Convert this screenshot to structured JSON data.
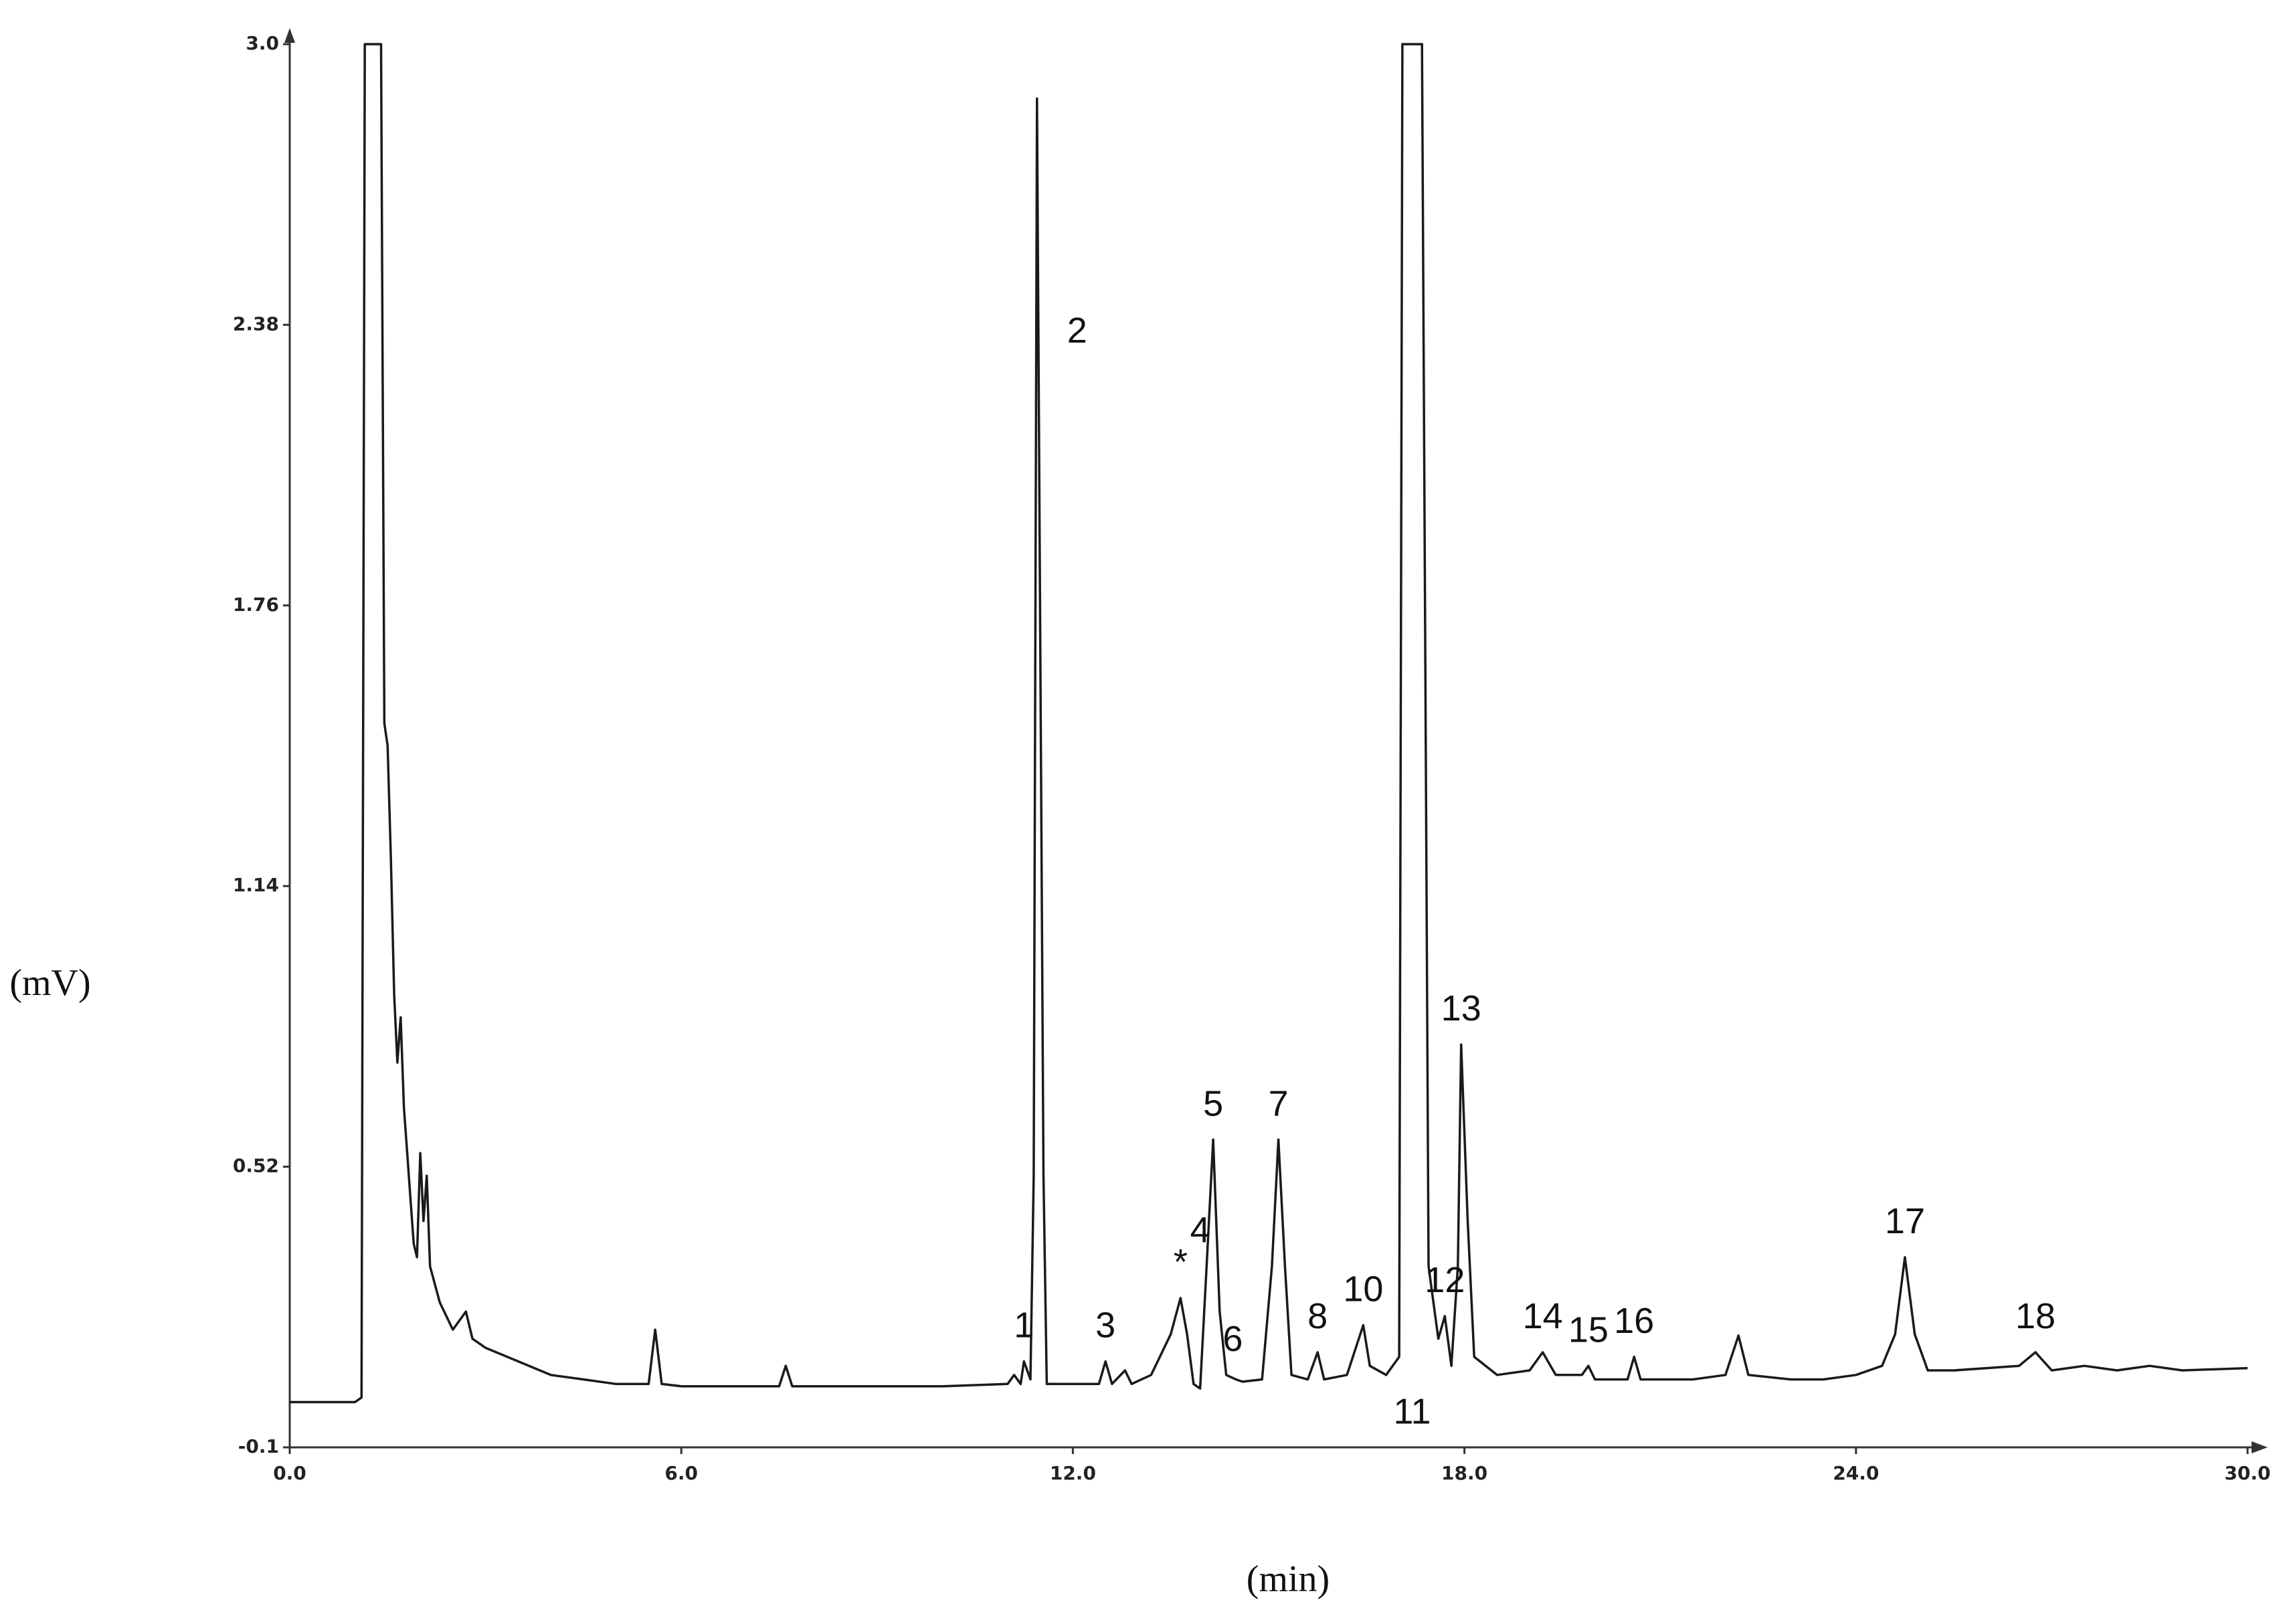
{
  "chart_data": {
    "type": "line",
    "xlabel": "(min)",
    "ylabel": "(mV)",
    "color": "#1a1a1a",
    "xlim": [
      0,
      30
    ],
    "xticks": [
      {
        "value": 0,
        "label": "0.0"
      },
      {
        "value": 6,
        "label": "6.0"
      },
      {
        "value": 12,
        "label": "12.0"
      },
      {
        "value": 18,
        "label": "18.0"
      },
      {
        "value": 24,
        "label": "24.0"
      },
      {
        "value": 30,
        "label": "30.0"
      }
    ],
    "ylim": [
      -0.1,
      3.0
    ],
    "yticks": [
      -0.1,
      0.52,
      1.14,
      1.76,
      2.38,
      {
        "value": 3.0,
        "label": "3.0"
      }
    ],
    "x": [
      0,
      1.0,
      1.1,
      1.15,
      1.4,
      1.45,
      1.5,
      1.55,
      1.6,
      1.65,
      1.7,
      1.75,
      1.8,
      1.85,
      1.9,
      1.95,
      2.0,
      2.05,
      2.1,
      2.15,
      2.3,
      2.5,
      2.7,
      2.8,
      3.0,
      3.5,
      4.0,
      4.5,
      5.0,
      5.5,
      5.6,
      5.7,
      6.0,
      7.0,
      7.5,
      7.6,
      7.7,
      9.0,
      10.0,
      11.0,
      11.1,
      11.2,
      11.25,
      11.35,
      11.4,
      11.45,
      11.55,
      11.6,
      12.0,
      12.4,
      12.5,
      12.6,
      12.8,
      12.9,
      13.2,
      13.5,
      13.65,
      13.75,
      13.85,
      13.95,
      14.05,
      14.15,
      14.25,
      14.35,
      14.5,
      14.6,
      14.9,
      15.05,
      15.15,
      15.25,
      15.35,
      15.6,
      15.75,
      15.85,
      16.2,
      16.45,
      16.55,
      16.8,
      17.0,
      17.05,
      17.35,
      17.45,
      17.6,
      17.7,
      17.8,
      17.9,
      17.95,
      18.05,
      18.15,
      18.5,
      19.0,
      19.2,
      19.4,
      19.8,
      19.9,
      20.0,
      20.5,
      20.6,
      20.7,
      21.5,
      22.0,
      22.2,
      22.35,
      23.0,
      23.5,
      24.0,
      24.4,
      24.6,
      24.75,
      24.9,
      25.1,
      25.5,
      26.5,
      26.75,
      27.0,
      27.5,
      28.0,
      28.5,
      29.0,
      30.0
    ],
    "values": [
      0,
      0,
      0.01,
      3.0,
      3.0,
      1.5,
      1.45,
      1.2,
      0.9,
      0.75,
      0.85,
      0.65,
      0.55,
      0.45,
      0.35,
      0.32,
      0.55,
      0.4,
      0.5,
      0.3,
      0.22,
      0.16,
      0.2,
      0.14,
      0.12,
      0.09,
      0.06,
      0.05,
      0.04,
      0.04,
      0.16,
      0.04,
      0.035,
      0.035,
      0.035,
      0.08,
      0.035,
      0.035,
      0.035,
      0.04,
      0.06,
      0.04,
      0.09,
      0.05,
      0.5,
      2.88,
      0.5,
      0.04,
      0.04,
      0.04,
      0.09,
      0.04,
      0.07,
      0.04,
      0.06,
      0.15,
      0.23,
      0.15,
      0.04,
      0.03,
      0.3,
      0.58,
      0.2,
      0.06,
      0.05,
      0.045,
      0.05,
      0.3,
      0.58,
      0.3,
      0.06,
      0.05,
      0.11,
      0.05,
      0.06,
      0.17,
      0.08,
      0.06,
      0.1,
      3.0,
      3.0,
      0.3,
      0.14,
      0.19,
      0.08,
      0.3,
      0.79,
      0.4,
      0.1,
      0.06,
      0.07,
      0.11,
      0.06,
      0.06,
      0.08,
      0.05,
      0.05,
      0.1,
      0.05,
      0.05,
      0.06,
      0.147,
      0.06,
      0.05,
      0.05,
      0.06,
      0.08,
      0.15,
      0.32,
      0.15,
      0.07,
      0.07,
      0.08,
      0.11,
      0.07,
      0.08,
      0.07,
      0.08,
      0.07,
      0.075
    ],
    "annotations": [
      {
        "text": "1",
        "x": 11.25
      },
      {
        "text": "2",
        "x": 11.45
      },
      {
        "text": "3",
        "x": 12.5
      },
      {
        "text": "*",
        "x": 13.65
      },
      {
        "text": "4",
        "x": 13.95
      },
      {
        "text": "5",
        "x": 14.15
      },
      {
        "text": "6",
        "x": 14.45
      },
      {
        "text": "7",
        "x": 15.15
      },
      {
        "text": "8",
        "x": 15.75
      },
      {
        "text": "10",
        "x": 16.45
      },
      {
        "text": "11",
        "x": 17.2
      },
      {
        "text": "12",
        "x": 17.7
      },
      {
        "text": "13",
        "x": 17.95
      },
      {
        "text": "14",
        "x": 19.2
      },
      {
        "text": "15",
        "x": 19.9
      },
      {
        "text": "16",
        "x": 20.6
      },
      {
        "text": "17",
        "x": 24.75
      },
      {
        "text": "18",
        "x": 26.75
      }
    ]
  }
}
